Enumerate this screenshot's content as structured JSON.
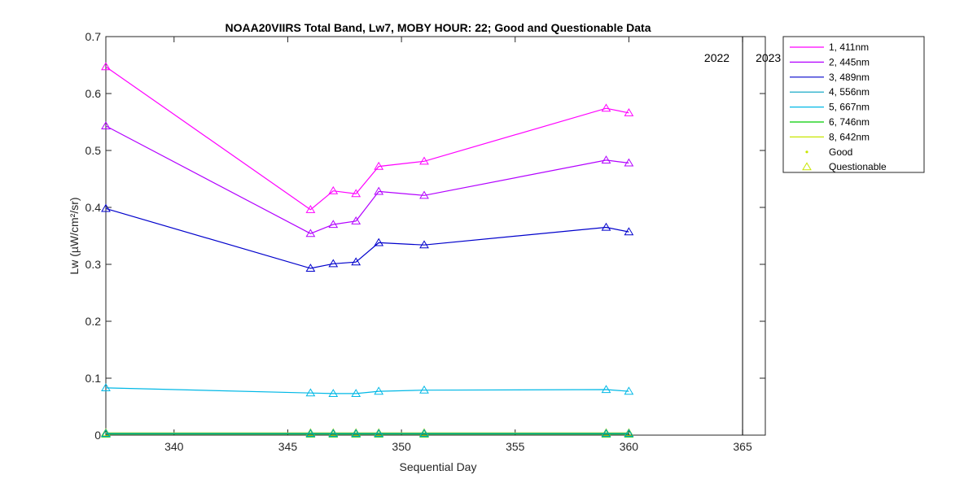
{
  "chart_data": {
    "type": "line",
    "title": "NOAA20VIIRS Total Band,  Lw7, MOBY HOUR: 22;  Good and Questionable Data",
    "xlabel": "Sequential Day",
    "ylabel": "Lw (µW/cm²/sr)",
    "xlim": [
      337,
      366
    ],
    "ylim": [
      0,
      0.7
    ],
    "xticks": [
      340,
      345,
      350,
      355,
      360,
      365
    ],
    "yticks": [
      0,
      0.1,
      0.2,
      0.3,
      0.4,
      0.5,
      0.6,
      0.7
    ],
    "ytick_labels": [
      "0",
      "0.1",
      "0.2",
      "0.3",
      "0.4",
      "0.5",
      "0.6",
      "0.7"
    ],
    "grid": false,
    "legend_position": "outside-top-right",
    "x": [
      337,
      346,
      347,
      348,
      349,
      351,
      359,
      360
    ],
    "series": [
      {
        "name": "1, 411nm",
        "color": "#ff00ff",
        "values": [
          0.647,
          0.396,
          0.429,
          0.424,
          0.472,
          0.481,
          0.574,
          0.566
        ]
      },
      {
        "name": "2, 445nm",
        "color": "#b300ff",
        "values": [
          0.543,
          0.354,
          0.37,
          0.376,
          0.428,
          0.421,
          0.483,
          0.478
        ]
      },
      {
        "name": "3, 489nm",
        "color": "#0000cc",
        "values": [
          0.398,
          0.293,
          0.301,
          0.304,
          0.338,
          0.334,
          0.365,
          0.357
        ]
      },
      {
        "name": "4, 556nm",
        "color": "#00a0c0",
        "values": [
          0.003,
          0.003,
          0.003,
          0.003,
          0.003,
          0.003,
          0.003,
          0.003
        ]
      },
      {
        "name": "5, 667nm",
        "color": "#00b8e6",
        "values": [
          0.083,
          0.074,
          0.073,
          0.073,
          0.077,
          0.079,
          0.08,
          0.077
        ]
      },
      {
        "name": "6, 746nm",
        "color": "#00cc00",
        "values": [
          0.002,
          0.002,
          0.002,
          0.002,
          0.002,
          0.002,
          0.002,
          0.002
        ]
      },
      {
        "name": "8, 642nm",
        "color": "#c8e600",
        "values": [
          0.004,
          0.004,
          0.004,
          0.004,
          0.004,
          0.004,
          0.004,
          0.004
        ]
      }
    ],
    "legend_markers": [
      {
        "name": "Good",
        "marker": "dot",
        "color": "#c8e600"
      },
      {
        "name": "Questionable",
        "marker": "triangle",
        "color": "#c8e600"
      }
    ],
    "year_divider": {
      "x": 365,
      "label_left": "2022",
      "label_right": "2023"
    }
  }
}
